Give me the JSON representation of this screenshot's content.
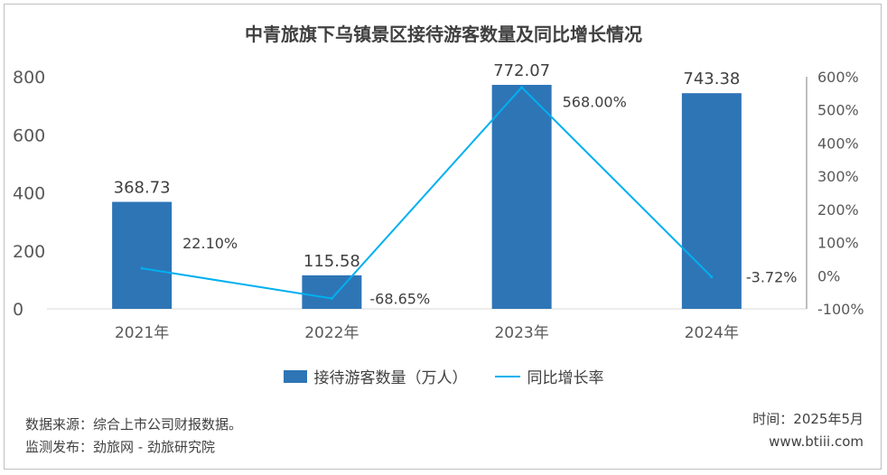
{
  "chart_data": {
    "type": "bar",
    "title": "中青旅旗下乌镇景区接待游客数量及同比增长情况",
    "categories": [
      "2021年",
      "2022年",
      "2023年",
      "2024年"
    ],
    "series": [
      {
        "name": "接待游客数量（万人）",
        "type": "bar",
        "axis": "left",
        "values": [
          368.73,
          115.58,
          772.07,
          743.38
        ],
        "labels": [
          "368.73",
          "115.58",
          "772.07",
          "743.38"
        ],
        "color": "#2e75b6"
      },
      {
        "name": "同比增长率",
        "type": "line",
        "axis": "right",
        "values": [
          22.1,
          -68.65,
          568.0,
          -3.72
        ],
        "labels": [
          "22.10%",
          "-68.65%",
          "568.00%",
          "-3.72%"
        ],
        "color": "#00b0f0"
      }
    ],
    "y_left": {
      "ylim": [
        0,
        800
      ],
      "ticks": [
        0,
        200,
        400,
        600,
        800
      ],
      "tick_labels": [
        "0",
        "200",
        "400",
        "600",
        "800"
      ]
    },
    "y_right": {
      "ylim": [
        -100,
        600
      ],
      "ticks": [
        -100,
        0,
        100,
        200,
        300,
        400,
        500,
        600
      ],
      "tick_labels": [
        "-100%",
        "0%",
        "100%",
        "200%",
        "300%",
        "400%",
        "500%",
        "600%"
      ]
    },
    "legend_position": "bottom",
    "grid": false
  },
  "footer": {
    "source": "数据来源：综合上市公司财报数据。",
    "publisher": "监测发布：劲旅网 - 劲旅研究院",
    "time": "时间：2025年5月",
    "site": "www.btiii.com"
  }
}
